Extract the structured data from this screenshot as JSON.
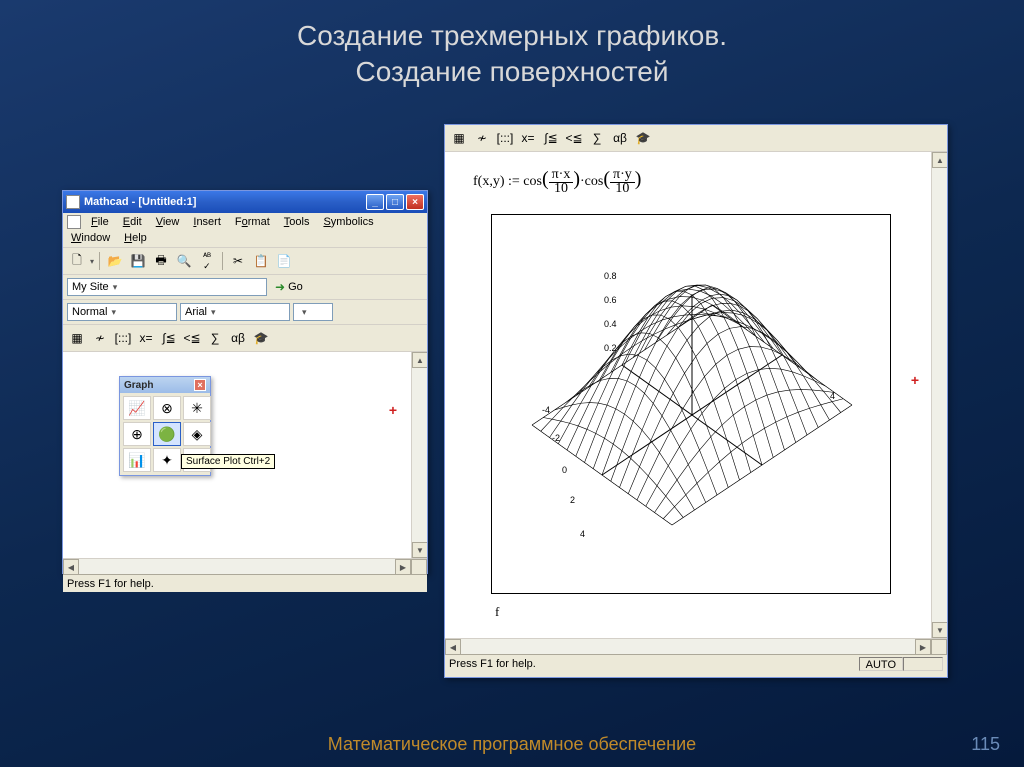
{
  "slide": {
    "title_line1": "Создание трехмерных графиков.",
    "title_line2": "Создание поверхностей",
    "footer": "Математическое программное обеспечение",
    "page": "115"
  },
  "left_window": {
    "title": "Mathcad - [Untitled:1]",
    "menus": [
      "File",
      "Edit",
      "View",
      "Insert",
      "Format",
      "Tools",
      "Symbolics",
      "Window",
      "Help"
    ],
    "site_field": "My Site",
    "go_label": "Go",
    "style_field": "Normal",
    "font_field": "Arial",
    "math_toolbar_glyphs": [
      "▦",
      "≁",
      "[:::]",
      "x=",
      "∫≦",
      "<≦",
      "∑",
      "αβ",
      "🎓"
    ],
    "graph_palette": {
      "title": "Graph",
      "cells": [
        "📈",
        "⊗",
        "✳",
        "⊕",
        "🟢",
        "◈",
        "📊",
        "✦",
        "◐"
      ],
      "tooltip": "Surface Plot Ctrl+2"
    },
    "status": "Press F1 for help."
  },
  "right_window": {
    "math_toolbar_glyphs": [
      "▦",
      "≁",
      "[:::]",
      "x=",
      "∫≦",
      "<≦",
      "∑",
      "αβ",
      "🎓"
    ],
    "formula_text": "f(x,y) := cos(π·x / 10) · cos(π·y / 10)",
    "plot_label": "f",
    "status": "Press F1 for help.",
    "status_right": "AUTO",
    "surface": {
      "type": "3d-surface",
      "z_ticks": [
        "0.8",
        "0.6",
        "0.4",
        "0.2"
      ],
      "xy_ticks": [
        "-4",
        "-2",
        "0",
        "2",
        "4"
      ],
      "x_range": [
        -5,
        5
      ],
      "y_range": [
        -5,
        5
      ],
      "grid_steps": 16,
      "line_color": "#000000",
      "line_width": 0.6,
      "background_color": "#ffffff"
    }
  },
  "colors": {
    "slide_bg_top": "#1a3a6e",
    "slide_bg_bottom": "#051a3c",
    "title_color": "#d8d8d8",
    "footer_color": "#c08a2a",
    "window_bg": "#ece9d8",
    "titlebar_gradient": [
      "#3b78e7",
      "#1a4db8"
    ]
  }
}
